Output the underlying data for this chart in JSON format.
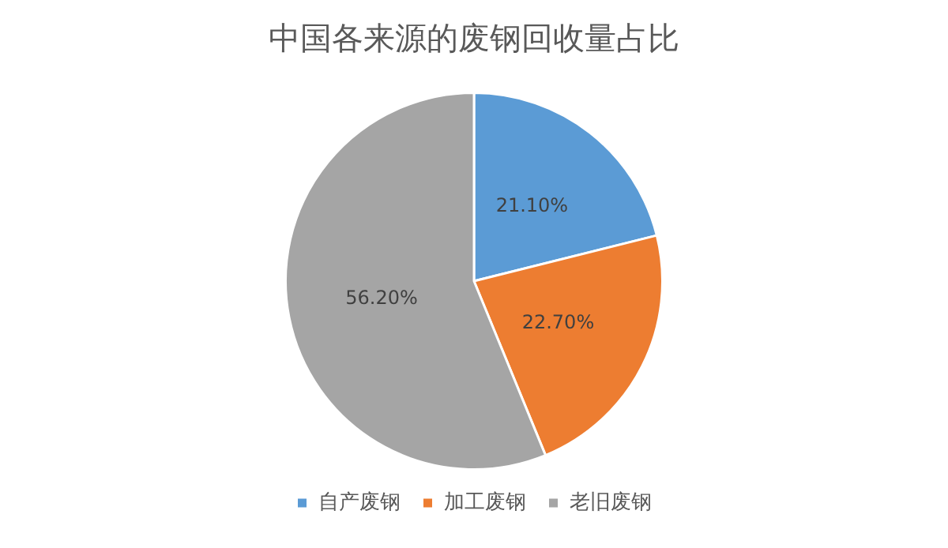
{
  "chart_data": {
    "type": "pie",
    "title": "中国各来源的废钢回收量占比",
    "categories": [
      "自产废钢",
      "加工废钢",
      "老旧废钢"
    ],
    "values": [
      21.1,
      22.7,
      56.2
    ],
    "colors": [
      "#5b9bd5",
      "#ed7d31",
      "#a5a5a5"
    ],
    "value_labels": [
      "21.10%",
      "22.70%",
      "56.20%"
    ],
    "legend": "bottom"
  }
}
